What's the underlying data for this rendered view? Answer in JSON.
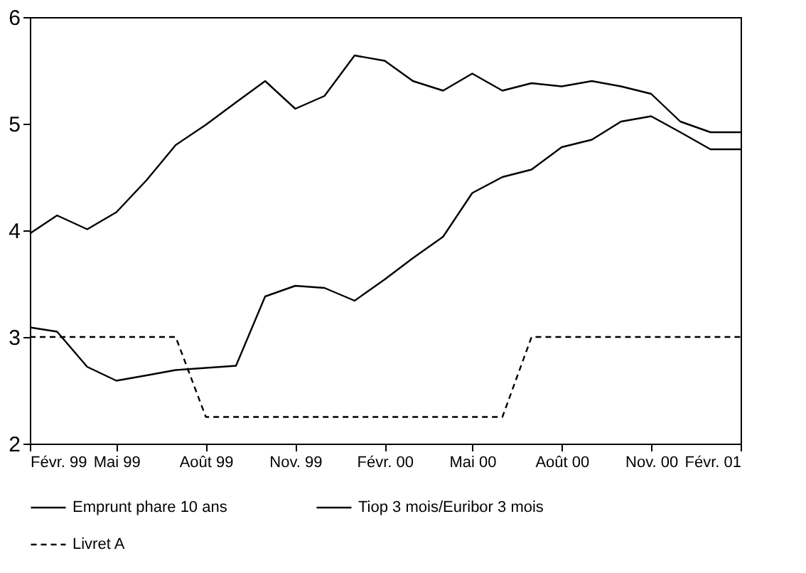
{
  "chart_data": {
    "type": "line",
    "x": [
      "1999-02",
      "1999-03",
      "1999-04",
      "1999-05",
      "1999-06",
      "1999-07",
      "1999-08",
      "1999-09",
      "1999-10",
      "1999-11",
      "1999-12",
      "2000-01",
      "2000-02",
      "2000-03",
      "2000-04",
      "2000-05",
      "2000-06",
      "2000-07",
      "2000-08",
      "2000-09",
      "2000-10",
      "2000-11",
      "2000-12",
      "2001-01",
      "2001-02"
    ],
    "series": [
      {
        "name": "Emprunt phare 10 ans",
        "color": "#000000",
        "line_style": "solid",
        "values": [
          3.97,
          4.14,
          4.01,
          4.17,
          4.47,
          4.8,
          4.99,
          5.2,
          5.4,
          5.14,
          5.26,
          5.64,
          5.59,
          5.4,
          5.31,
          5.47,
          5.31,
          5.38,
          5.35,
          5.4,
          5.35,
          5.28,
          5.02,
          4.92,
          4.92
        ]
      },
      {
        "name": "Tiop 3 mois/Euribor 3 mois",
        "color": "#000000",
        "line_style": "solid",
        "values": [
          3.09,
          3.05,
          2.72,
          2.59,
          2.64,
          2.69,
          2.71,
          2.73,
          3.38,
          3.48,
          3.46,
          3.34,
          3.54,
          3.74,
          3.94,
          4.35,
          4.5,
          4.57,
          4.78,
          4.85,
          5.02,
          5.07,
          4.92,
          4.76,
          4.76
        ]
      },
      {
        "name": "Livret A",
        "color": "#000000",
        "line_style": "dashed",
        "values": [
          3,
          3,
          3,
          3,
          3,
          3,
          2.25,
          2.25,
          2.25,
          2.25,
          2.25,
          2.25,
          2.25,
          2.25,
          2.25,
          2.25,
          2.25,
          3,
          3,
          3,
          3,
          3,
          3,
          3,
          3
        ]
      }
    ],
    "xlim": [
      "1999-02",
      "2001-02"
    ],
    "xticks": [
      {
        "value": "1999-02",
        "label": "Févr. 99"
      },
      {
        "value": "1999-05",
        "label": "Mai 99"
      },
      {
        "value": "1999-08",
        "label": "Août 99"
      },
      {
        "value": "1999-11",
        "label": "Nov. 99"
      },
      {
        "value": "2000-02",
        "label": "Févr. 00"
      },
      {
        "value": "2000-05",
        "label": "Mai 00"
      },
      {
        "value": "2000-08",
        "label": "Août 00"
      },
      {
        "value": "2000-11",
        "label": "Nov. 00"
      },
      {
        "value": "2001-02",
        "label": "Févr. 01"
      }
    ],
    "ylim": [
      2,
      6
    ],
    "yticks": [
      2,
      3,
      4,
      5,
      6
    ],
    "grid": false,
    "legend": "bottom",
    "marker": "none"
  }
}
